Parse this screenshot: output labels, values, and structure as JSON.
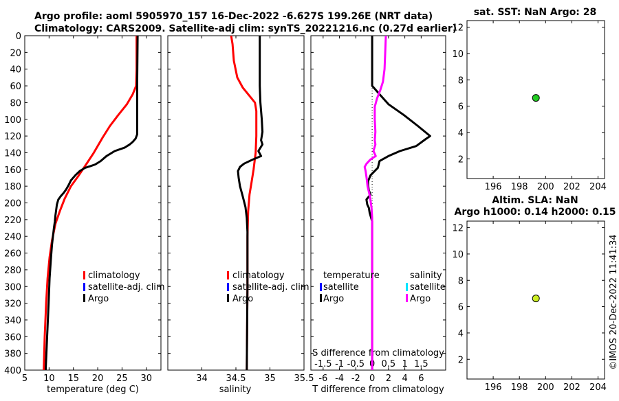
{
  "titles": {
    "line1": "Argo profile: aoml 5905970_157 16-Dec-2022 -6.627S 199.26E (NRT data)",
    "line2": "Climatology: CARS2009. Satellite-adj clim: synTS_20221216.nc (0.27d earlier)",
    "sst": "sat. SST: NaN Argo: 28",
    "sla1": "Altim. SLA: NaN",
    "sla2": "Argo h1000: 0.14 h2000: 0.15",
    "timestamp": "©IMOS 20-Dec-2022 11:41:34"
  },
  "colors": {
    "climatology": "#ff0000",
    "satellite_adj": "#0000ff",
    "argo": "#000000",
    "s_satellite": "#00e5ff",
    "s_argo": "#ff00ff",
    "sst_dot": "#22cc22",
    "sla_dot": "#ccee22"
  },
  "legend_left": {
    "climatology": "climatology",
    "satellite_adj": "satellite-adj. clim",
    "argo": "Argo"
  },
  "legend_diff": {
    "temp_header": "temperature",
    "sal_header": "salinity",
    "satellite": "satellite",
    "argo": "Argo"
  },
  "chart_data": [
    {
      "type": "line",
      "name": "temperature",
      "xlabel": "temperature (deg C)",
      "xlim": [
        5,
        33
      ],
      "xticks": [
        5,
        10,
        15,
        20,
        25,
        30
      ],
      "ylim": [
        0,
        400
      ],
      "yticks": [
        0,
        20,
        40,
        60,
        80,
        100,
        120,
        140,
        160,
        180,
        200,
        220,
        240,
        260,
        280,
        300,
        320,
        340,
        360,
        380,
        400
      ],
      "yreversed": true,
      "series": [
        {
          "name": "climatology",
          "color": "#ff0000",
          "points": [
            [
              28,
              0
            ],
            [
              28,
              40
            ],
            [
              27.9,
              60
            ],
            [
              27.2,
              70
            ],
            [
              26,
              82
            ],
            [
              24.2,
              95
            ],
            [
              22.5,
              108
            ],
            [
              21,
              122
            ],
            [
              19.2,
              140
            ],
            [
              17.5,
              155
            ],
            [
              16,
              168
            ],
            [
              14.5,
              180
            ],
            [
              13.2,
              195
            ],
            [
              12.2,
              210
            ],
            [
              11.3,
              225
            ],
            [
              10.6,
              245
            ],
            [
              10.1,
              265
            ],
            [
              9.7,
              290
            ],
            [
              9.4,
              320
            ],
            [
              9.1,
              360
            ],
            [
              8.9,
              400
            ]
          ]
        },
        {
          "name": "Argo",
          "color": "#000000",
          "points": [
            [
              28.2,
              0
            ],
            [
              28.1,
              60
            ],
            [
              28.1,
              118
            ],
            [
              27.8,
              123
            ],
            [
              27.2,
              127
            ],
            [
              26.6,
              130
            ],
            [
              25.5,
              134
            ],
            [
              23.5,
              138
            ],
            [
              21.8,
              144
            ],
            [
              20.6,
              150
            ],
            [
              19.5,
              154
            ],
            [
              18.5,
              156
            ],
            [
              17.4,
              158
            ],
            [
              16.3,
              162
            ],
            [
              15.4,
              167
            ],
            [
              14.5,
              173
            ],
            [
              14.0,
              179
            ],
            [
              13.5,
              184
            ],
            [
              13.0,
              188
            ],
            [
              12.4,
              192
            ],
            [
              11.9,
              196
            ],
            [
              11.6,
              202
            ],
            [
              11.3,
              215
            ],
            [
              11.2,
              222
            ],
            [
              11.0,
              230
            ],
            [
              10.8,
              240
            ],
            [
              10.6,
              250
            ],
            [
              10.4,
              265
            ],
            [
              10.1,
              290
            ],
            [
              9.9,
              320
            ],
            [
              9.6,
              360
            ],
            [
              9.3,
              400
            ]
          ]
        }
      ]
    },
    {
      "type": "line",
      "name": "salinity",
      "xlabel": "salinity",
      "xlim": [
        33.5,
        35.5
      ],
      "xticks": [
        34,
        34.5,
        35,
        35.5
      ],
      "ylim": [
        0,
        400
      ],
      "yreversed": true,
      "series": [
        {
          "name": "climatology",
          "color": "#ff0000",
          "points": [
            [
              34.43,
              0
            ],
            [
              34.45,
              10
            ],
            [
              34.47,
              30
            ],
            [
              34.52,
              50
            ],
            [
              34.6,
              62
            ],
            [
              34.7,
              72
            ],
            [
              34.78,
              80
            ],
            [
              34.8,
              90
            ],
            [
              34.8,
              120
            ],
            [
              34.79,
              140
            ],
            [
              34.76,
              160
            ],
            [
              34.73,
              175
            ],
            [
              34.7,
              190
            ],
            [
              34.68,
              210
            ],
            [
              34.67,
              240
            ],
            [
              34.67,
              300
            ],
            [
              34.66,
              400
            ]
          ]
        },
        {
          "name": "Argo",
          "color": "#000000",
          "points": [
            [
              34.85,
              0
            ],
            [
              34.85,
              60
            ],
            [
              34.86,
              80
            ],
            [
              34.88,
              100
            ],
            [
              34.89,
              115
            ],
            [
              34.87,
              125
            ],
            [
              34.89,
              130
            ],
            [
              34.83,
              138
            ],
            [
              34.87,
              144
            ],
            [
              34.75,
              148
            ],
            [
              34.62,
              153
            ],
            [
              34.56,
              157
            ],
            [
              34.53,
              162
            ],
            [
              34.54,
              170
            ],
            [
              34.56,
              180
            ],
            [
              34.6,
              192
            ],
            [
              34.64,
              205
            ],
            [
              34.66,
              218
            ],
            [
              34.67,
              235
            ],
            [
              34.67,
              300
            ],
            [
              34.66,
              400
            ]
          ]
        }
      ]
    },
    {
      "type": "line",
      "name": "difference",
      "xlabel": "T difference from climatology",
      "xlabel_top": "S difference from climatology",
      "xlim": [
        -7.5,
        9
      ],
      "xticks": [
        -6,
        -4,
        -2,
        0,
        2,
        4,
        6
      ],
      "s_xticks": [
        -1.5,
        -1,
        -0.5,
        0,
        0.5,
        1,
        1.5
      ],
      "s_xlim": [
        -1.875,
        2.25
      ],
      "ylim": [
        0,
        400
      ],
      "yreversed": true,
      "series": [
        {
          "name": "T Argo",
          "color": "#000000",
          "points": [
            [
              0,
              0
            ],
            [
              0,
              40
            ],
            [
              0,
              60
            ],
            [
              0.9,
              70
            ],
            [
              2,
              82
            ],
            [
              3.9,
              95
            ],
            [
              5.6,
              108
            ],
            [
              7.1,
              120
            ],
            [
              6.5,
              124
            ],
            [
              5.4,
              132
            ],
            [
              3.4,
              138
            ],
            [
              2,
              144
            ],
            [
              0.9,
              150
            ],
            [
              0.7,
              158
            ],
            [
              0.3,
              162
            ],
            [
              -0.2,
              167
            ],
            [
              -0.5,
              174
            ],
            [
              -0.5,
              179
            ],
            [
              -0.4,
              185
            ],
            [
              -0.2,
              190
            ],
            [
              -0.7,
              196
            ],
            [
              -0.6,
              202
            ],
            [
              -0.4,
              206
            ],
            [
              -0.3,
              212
            ],
            [
              0,
              222
            ],
            [
              0,
              240
            ],
            [
              0,
              270
            ],
            [
              0,
              300
            ],
            [
              0,
              400
            ]
          ]
        },
        {
          "name": "S Argo",
          "color": "#ff00ff",
          "points": [
            [
              0.42,
              0
            ],
            [
              0.4,
              20
            ],
            [
              0.38,
              40
            ],
            [
              0.33,
              55
            ],
            [
              0.25,
              65
            ],
            [
              0.15,
              75
            ],
            [
              0.08,
              85
            ],
            [
              0.08,
              100
            ],
            [
              0.1,
              115
            ],
            [
              0.08,
              125
            ],
            [
              0.1,
              130
            ],
            [
              0.04,
              138
            ],
            [
              0.11,
              144
            ],
            [
              -0.05,
              148
            ],
            [
              -0.17,
              153
            ],
            [
              -0.23,
              157
            ],
            [
              -0.2,
              162
            ],
            [
              -0.17,
              170
            ],
            [
              -0.14,
              180
            ],
            [
              -0.07,
              192
            ],
            [
              -0.02,
              205
            ],
            [
              0,
              218
            ],
            [
              0,
              235
            ],
            [
              0,
              300
            ],
            [
              0,
              400
            ]
          ]
        }
      ]
    },
    {
      "type": "scatter",
      "name": "sst-map",
      "xlim": [
        194,
        204.5
      ],
      "xticks": [
        196,
        198,
        200,
        202,
        204
      ],
      "ylim": [
        0.5,
        12.5
      ],
      "yticks": [
        2,
        4,
        6,
        8,
        10,
        12
      ],
      "points": [
        {
          "x": 199.26,
          "y": 6.627,
          "color": "#22cc22"
        }
      ]
    },
    {
      "type": "scatter",
      "name": "sla-map",
      "xlim": [
        194,
        204.5
      ],
      "xticks": [
        196,
        198,
        200,
        202,
        204
      ],
      "ylim": [
        0.5,
        12.5
      ],
      "yticks": [
        2,
        4,
        6,
        8,
        10,
        12
      ],
      "points": [
        {
          "x": 199.26,
          "y": 6.627,
          "color": "#ccee22"
        }
      ]
    }
  ]
}
